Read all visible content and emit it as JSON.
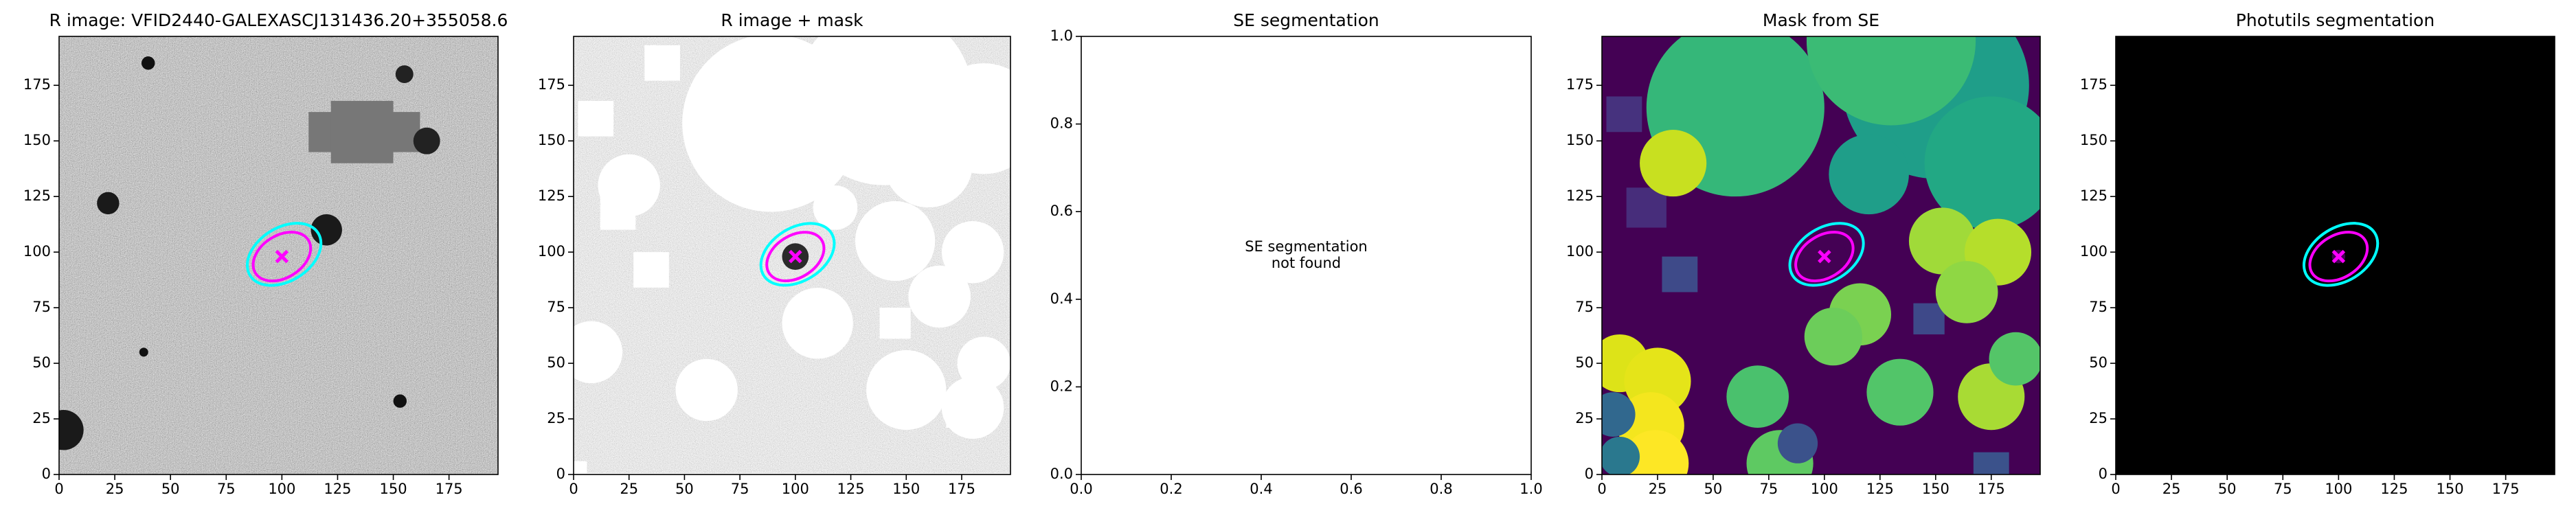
{
  "chart_data": [
    {
      "type": "image",
      "title": "R image: VFID2440-GALEXASCJ131436.20+355058.6",
      "xlim": [
        0,
        197
      ],
      "ylim": [
        0,
        197
      ],
      "xticks": [
        0,
        25,
        50,
        75,
        100,
        125,
        150,
        175
      ],
      "yticks": [
        0,
        25,
        50,
        75,
        100,
        125,
        150,
        175
      ]
    },
    {
      "type": "image",
      "title": "R image + mask",
      "xlim": [
        0,
        197
      ],
      "ylim": [
        0,
        197
      ],
      "xticks": [
        0,
        25,
        50,
        75,
        100,
        125,
        150,
        175
      ],
      "yticks": [
        0,
        25,
        50,
        75,
        100,
        125,
        150,
        175
      ]
    },
    {
      "type": "empty",
      "title": "SE segmentation",
      "annotation": [
        "SE segmentation",
        "not found"
      ],
      "xlim": [
        0,
        1
      ],
      "ylim": [
        0,
        1
      ],
      "xticks": [
        {
          "value": 0,
          "label": "0.0"
        },
        0.2,
        0.4,
        0.6,
        0.8,
        {
          "value": 1,
          "label": "1.0"
        }
      ],
      "yticks": [
        {
          "value": 0,
          "label": "0.0"
        },
        0.2,
        0.4,
        0.6,
        0.8,
        {
          "value": 1,
          "label": "1.0"
        }
      ]
    },
    {
      "type": "image",
      "title": "Mask from SE",
      "xlim": [
        0,
        197
      ],
      "ylim": [
        0,
        197
      ],
      "xticks": [
        0,
        25,
        50,
        75,
        100,
        125,
        150,
        175
      ],
      "yticks": [
        0,
        25,
        50,
        75,
        100,
        125,
        150,
        175
      ]
    },
    {
      "type": "image",
      "title": "Photutils segmentation",
      "xlim": [
        0,
        197
      ],
      "ylim": [
        0,
        197
      ],
      "xticks": [
        0,
        25,
        50,
        75,
        100,
        125,
        150,
        175
      ],
      "yticks": [
        0,
        25,
        50,
        75,
        100,
        125,
        150,
        175
      ]
    }
  ]
}
